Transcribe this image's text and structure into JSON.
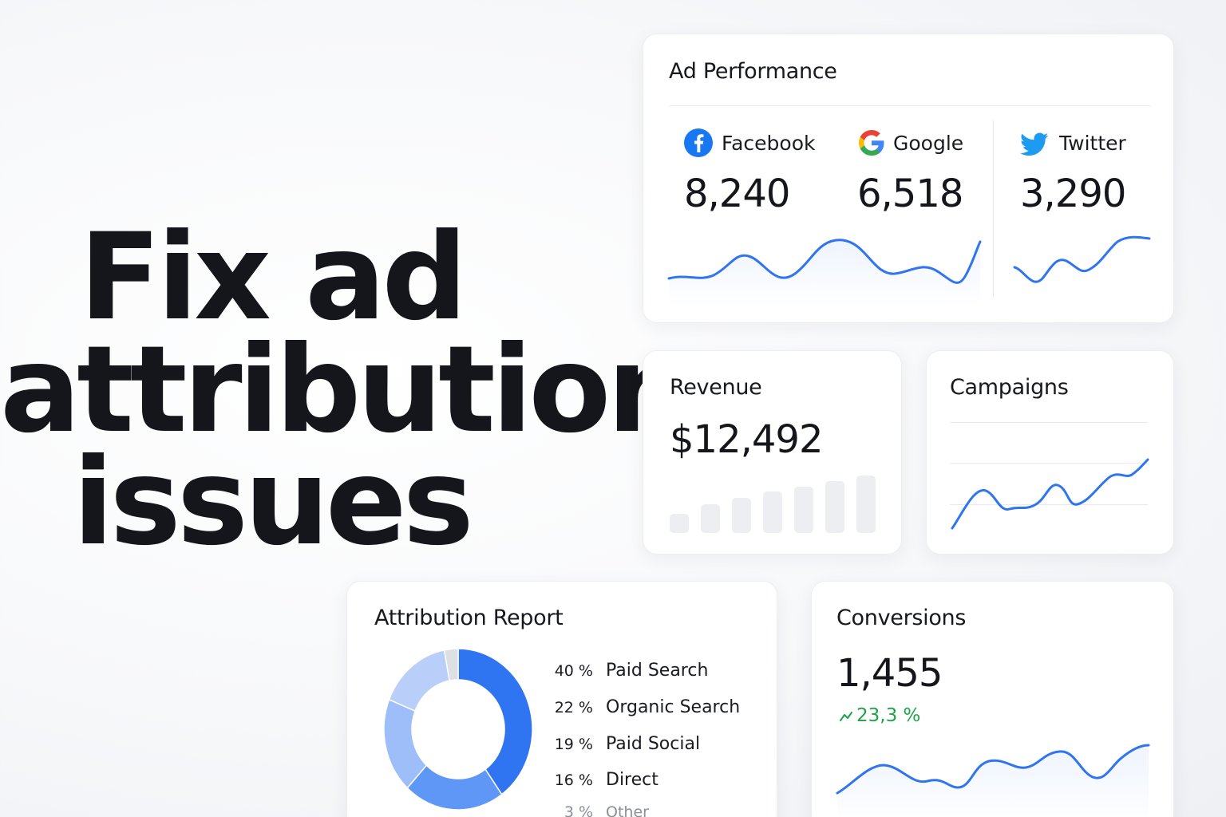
{
  "headline": {
    "line1": "Fix ad",
    "line2": "attribution",
    "line3": "issues"
  },
  "ad_performance": {
    "title": "Ad Performance",
    "networks": [
      {
        "name": "Facebook",
        "value": "8,240",
        "icon": "facebook-icon"
      },
      {
        "name": "Google",
        "value": "6,518",
        "icon": "google-icon"
      },
      {
        "name": "Twitter",
        "value": "3,290",
        "icon": "twitter-icon"
      }
    ]
  },
  "revenue": {
    "title": "Revenue",
    "value": "$12,492"
  },
  "campaigns": {
    "title": "Campaigns"
  },
  "attribution_report": {
    "title": "Attribution Report",
    "items": [
      {
        "pct": "40 %",
        "label": "Paid Search",
        "share": 40,
        "color": "#2f74f0"
      },
      {
        "pct": "22 %",
        "label": "Organic Search",
        "share": 22,
        "color": "#5e97f5"
      },
      {
        "pct": "19 %",
        "label": "Paid Social",
        "share": 19,
        "color": "#9dbef8"
      },
      {
        "pct": "16 %",
        "label": "Direct",
        "share": 16,
        "color": "#b9cff9"
      },
      {
        "pct": "3 %",
        "label": "Other",
        "share": 3,
        "color": "#dcdfe4"
      }
    ]
  },
  "conversions": {
    "title": "Conversions",
    "value": "1,455",
    "change": "23,3 %",
    "change_color": "#1fa34a"
  },
  "colors": {
    "accent": "#2f74f0",
    "bar_gray": "#eceef1"
  }
}
